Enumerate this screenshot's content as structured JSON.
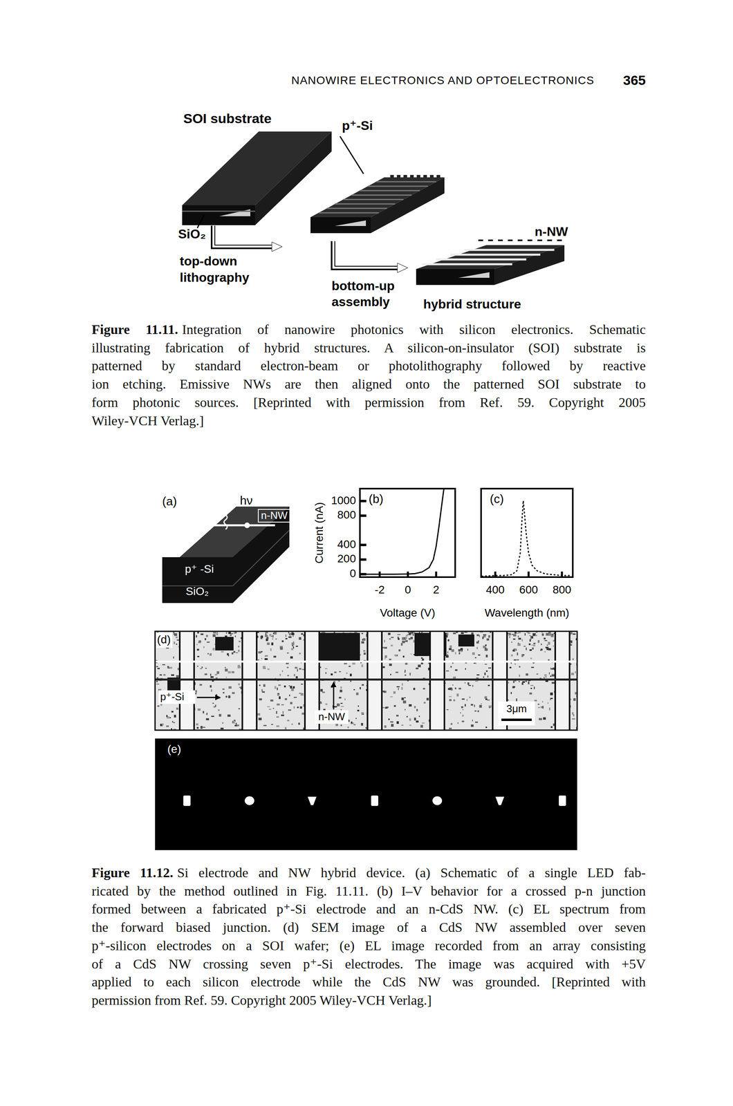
{
  "header": {
    "running_title": "NANOWIRE ELECTRONICS AND OPTOELECTRONICS",
    "page_number": "365"
  },
  "figure_11_11": {
    "labels": {
      "soi_substrate": "SOI substrate",
      "p_si": "p⁺-Si",
      "sio2": "SiO₂",
      "top_down": [
        "top-down",
        "lithography"
      ],
      "bottom_up": [
        "bottom-up",
        "assembly"
      ],
      "n_nw": "n-NW",
      "hybrid": "hybrid structure"
    },
    "caption": {
      "label": "Figure 11.11.",
      "lines": [
        "Integration of nanowire photonics with silicon electronics. Schematic",
        "illustrating fabrication of hybrid structures. A silicon-on-insulator (SOI) substrate is",
        "patterned by standard electron-beam or photolithography followed by reactive",
        "ion etching. Emissive NWs are then aligned onto the patterned SOI substrate to",
        "form photonic sources. [Reprinted with permission from Ref. 59. Copyright 2005",
        "Wiley-VCH Verlag.]"
      ]
    }
  },
  "figure_11_12": {
    "panel_a": {
      "label": "(a)",
      "photon": "hν",
      "n_nw": "n-NW",
      "p_si": "p⁺ -Si",
      "sio2": "SiO₂"
    },
    "panel_d": {
      "label": "(d)",
      "p_si": "p⁺-Si",
      "n_nw": "n-NW",
      "scale_bar": "3μm"
    },
    "panel_e": {
      "label": "(e)"
    },
    "caption": {
      "label": "Figure 11.12.",
      "lines": [
        "Si electrode and NW hybrid device. (a) Schematic of a single LED fab-",
        "ricated by the method outlined in Fig. 11.11. (b) I–V behavior for a crossed p-n junction",
        "formed between a fabricated p⁺-Si electrode and an n-CdS NW. (c) EL spectrum from",
        "the forward biased junction. (d) SEM image of a CdS NW assembled over seven",
        "p⁺-silicon electrodes on a SOI wafer; (e) EL image recorded from an array consisting",
        "of a CdS NW crossing seven p⁺-Si electrodes. The image was acquired with +5V",
        "applied to each silicon electrode while the CdS NW was grounded. [Reprinted with",
        "permission from Ref. 59. Copyright 2005 Wiley-VCH Verlag.]"
      ]
    }
  },
  "chart_data": [
    {
      "type": "line",
      "title": "(b)",
      "x_label": "Voltage (V)",
      "y_label": "Current (nA)",
      "x": [
        -3.3,
        -2,
        -1,
        0,
        0.5,
        1,
        1.5,
        1.8,
        2,
        2.2,
        2.4,
        2.55
      ],
      "values": [
        0,
        0,
        0,
        2,
        8,
        30,
        90,
        200,
        380,
        650,
        950,
        1170
      ],
      "xlim": [
        -3.4,
        3.35
      ],
      "ylim": [
        -40,
        1170
      ],
      "xticks": [
        -2,
        0,
        2
      ],
      "yticks": [
        0,
        200,
        400,
        800,
        1000
      ],
      "color": "#000000",
      "line_style": "solid"
    },
    {
      "type": "line",
      "title": "(c)",
      "x_label": "Wavelength (nm)",
      "x": [
        320,
        400,
        450,
        500,
        530,
        550,
        560,
        568,
        575,
        585,
        600,
        620,
        650,
        700,
        750,
        800,
        860
      ],
      "values": [
        0.01,
        0.02,
        0.02,
        0.03,
        0.08,
        0.3,
        0.7,
        0.95,
        0.8,
        0.55,
        0.3,
        0.15,
        0.08,
        0.04,
        0.03,
        0.02,
        0.02
      ],
      "xlim": [
        315,
        865
      ],
      "ylim": [
        0,
        1.1
      ],
      "xticks": [
        400,
        600,
        800
      ],
      "tick_labels": "x",
      "color": "#000000",
      "line_style": "dotted"
    }
  ]
}
